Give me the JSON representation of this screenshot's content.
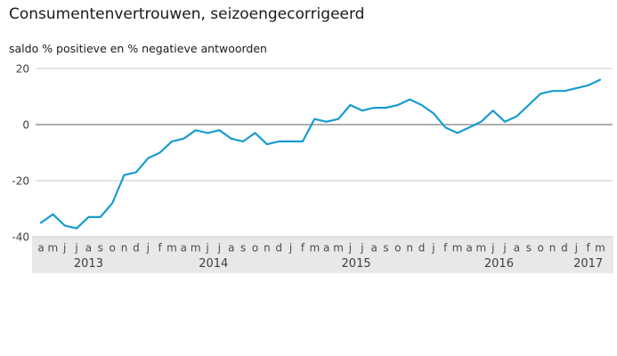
{
  "chart_data": {
    "type": "line",
    "title": "Consumentenvertrouwen, seizoengecorrigeerd",
    "subtitle": "saldo % positieve en % negatieve antwoorden",
    "x_month_letters": [
      "a",
      "m",
      "j",
      "j",
      "a",
      "s",
      "o",
      "n",
      "d",
      "j",
      "f",
      "m",
      "a",
      "m",
      "j",
      "j",
      "a",
      "s",
      "o",
      "n",
      "d",
      "j",
      "f",
      "m",
      "a",
      "m",
      "j",
      "j",
      "a",
      "s",
      "o",
      "n",
      "d",
      "j",
      "f",
      "m",
      "a",
      "m",
      "j",
      "j",
      "a",
      "s",
      "o",
      "n",
      "d",
      "j",
      "f",
      "m"
    ],
    "years": [
      {
        "label": "2013",
        "start": 0,
        "end": 8
      },
      {
        "label": "2014",
        "start": 9,
        "end": 20
      },
      {
        "label": "2015",
        "start": 21,
        "end": 32
      },
      {
        "label": "2016",
        "start": 33,
        "end": 44
      },
      {
        "label": "2017",
        "start": 45,
        "end": 47
      }
    ],
    "values": [
      -35,
      -32,
      -36,
      -37,
      -33,
      -33,
      -28,
      -18,
      -17,
      -12,
      -10,
      -6,
      -5,
      -2,
      -3,
      -2,
      -5,
      -6,
      -3,
      -7,
      -6,
      -6,
      -6,
      2,
      1,
      2,
      7,
      5,
      6,
      6,
      7,
      9,
      7,
      4,
      -1,
      -3,
      -1,
      1,
      5,
      1,
      3,
      7,
      11,
      12,
      12,
      13,
      14,
      16
    ],
    "yticks": [
      20,
      0,
      -20,
      -40
    ],
    "ylim": [
      -40,
      20
    ],
    "legend": false,
    "grid": true,
    "colors": {
      "line": "#189bd2",
      "grid_light": "#dbdbdb",
      "grid_zero": "#b0b0b0",
      "axis_band": "#e8e8e8",
      "band_edge": "#c9c9c9",
      "tick_text": "#404040",
      "month_text": "#4d4d4d"
    }
  }
}
